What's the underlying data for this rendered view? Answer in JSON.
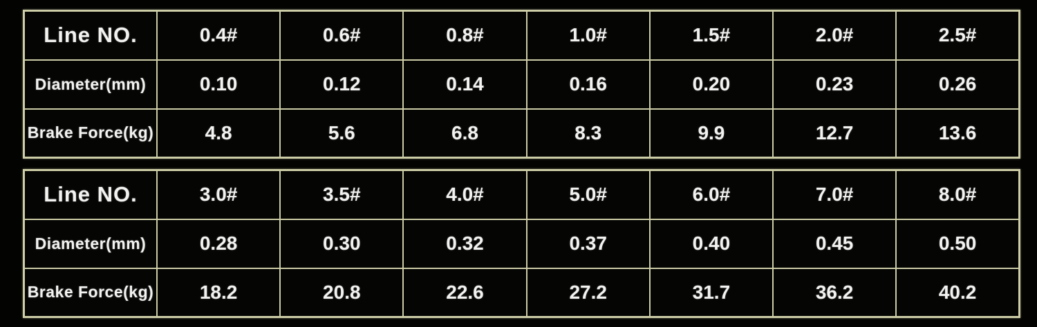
{
  "colors": {
    "background": "#030302",
    "grid_border": "#cdcda6",
    "text": "#f2f2f0"
  },
  "chart_data": [
    {
      "type": "table",
      "rows": [
        {
          "label": "Line NO.",
          "values": [
            "0.4#",
            "0.6#",
            "0.8#",
            "1.0#",
            "1.5#",
            "2.0#",
            "2.5#"
          ]
        },
        {
          "label": "Diameter(mm)",
          "values": [
            "0.10",
            "0.12",
            "0.14",
            "0.16",
            "0.20",
            "0.23",
            "0.26"
          ]
        },
        {
          "label": "Brake Force(kg)",
          "values": [
            "4.8",
            "5.6",
            "6.8",
            "8.3",
            "9.9",
            "12.7",
            "13.6"
          ]
        }
      ]
    },
    {
      "type": "table",
      "rows": [
        {
          "label": "Line NO.",
          "values": [
            "3.0#",
            "3.5#",
            "4.0#",
            "5.0#",
            "6.0#",
            "7.0#",
            "8.0#"
          ]
        },
        {
          "label": "Diameter(mm)",
          "values": [
            "0.28",
            "0.30",
            "0.32",
            "0.37",
            "0.40",
            "0.45",
            "0.50"
          ]
        },
        {
          "label": "Brake Force(kg)",
          "values": [
            "18.2",
            "20.8",
            "22.6",
            "27.2",
            "31.7",
            "36.2",
            "40.2"
          ]
        }
      ]
    }
  ]
}
